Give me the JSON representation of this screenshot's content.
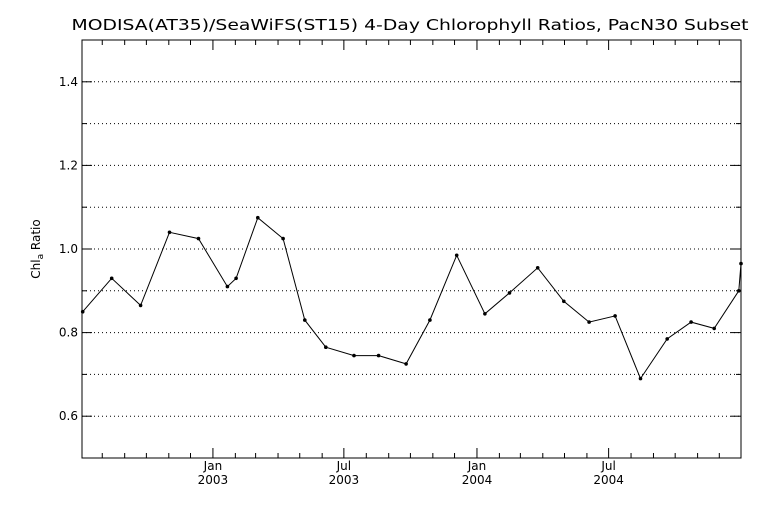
{
  "chart_data": {
    "type": "line",
    "title": "MODISA(AT35)/SeaWiFS(ST15) 4-Day Chlorophyll Ratios, PacN30 Subset",
    "ylabel": {
      "main": "Chl",
      "sub": "a",
      "rest": " Ratio"
    },
    "xlabel": "",
    "ylim": [
      0.5,
      1.5
    ],
    "xlim": [
      "2002-07-04",
      "2004-12-31"
    ],
    "yticks": [
      0.6,
      0.8,
      1.0,
      1.2,
      1.4
    ],
    "ytick_labels": [
      "0.6",
      "0.8",
      "1.0",
      "1.2",
      "1.4"
    ],
    "ygrid": [
      0.6,
      0.7,
      0.8,
      0.9,
      1.0,
      1.1,
      1.2,
      1.3,
      1.4
    ],
    "grid": "horizontal dotted",
    "xticks": [
      {
        "date": "2003-01-01",
        "month": "Jan",
        "year": "2003"
      },
      {
        "date": "2003-07-01",
        "month": "Jul",
        "year": "2003"
      },
      {
        "date": "2004-01-01",
        "month": "Jan",
        "year": "2004"
      },
      {
        "date": "2004-07-01",
        "month": "Jul",
        "year": "2004"
      }
    ],
    "x_minor_ticks": [
      "2002-08-01",
      "2002-09-01",
      "2002-10-01",
      "2002-11-01",
      "2002-12-01",
      "2003-02-01",
      "2003-03-01",
      "2003-04-01",
      "2003-05-01",
      "2003-06-01",
      "2003-08-01",
      "2003-09-01",
      "2003-10-01",
      "2003-11-01",
      "2003-12-01",
      "2004-02-01",
      "2004-03-01",
      "2004-04-01",
      "2004-05-01",
      "2004-06-01",
      "2004-08-01",
      "2004-09-01",
      "2004-10-01",
      "2004-11-01",
      "2004-12-01"
    ],
    "series": [
      {
        "x": [
          "2002-07-05",
          "2002-08-14",
          "2002-09-23",
          "2002-11-02",
          "2002-12-12",
          "2003-01-21",
          "2003-02-02",
          "2003-03-04",
          "2003-04-08",
          "2003-05-08",
          "2003-06-06",
          "2003-07-15",
          "2003-08-18",
          "2003-09-25",
          "2003-10-28",
          "2003-12-04",
          "2004-01-12",
          "2004-02-15",
          "2004-03-25",
          "2004-04-30",
          "2004-06-04",
          "2004-07-10",
          "2004-08-14",
          "2004-09-20",
          "2004-10-23",
          "2004-11-24",
          "2004-12-28",
          "2004-12-31"
        ],
        "y": [
          0.85,
          0.93,
          0.865,
          1.04,
          1.025,
          0.91,
          0.93,
          1.075,
          1.025,
          0.83,
          0.765,
          0.745,
          0.745,
          0.725,
          0.83,
          0.985,
          0.845,
          0.895,
          0.955,
          0.875,
          0.825,
          0.84,
          0.69,
          0.785,
          0.825,
          0.81,
          0.9,
          0.965
        ]
      }
    ]
  }
}
